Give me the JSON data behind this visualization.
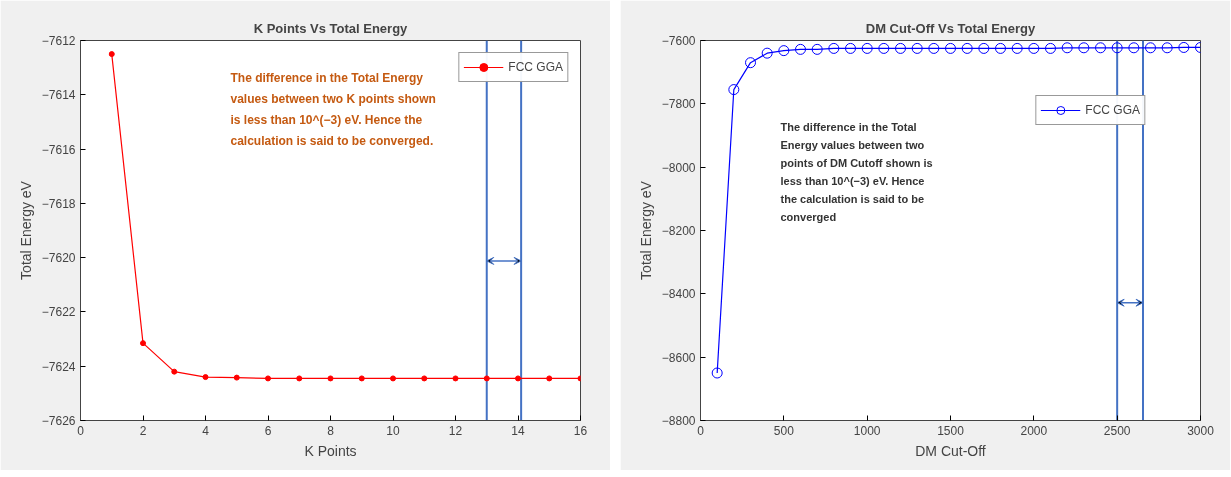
{
  "chart_data": [
    {
      "type": "line",
      "title": "K Points Vs Total Energy",
      "xlabel": "K Points",
      "ylabel": "Total Energy eV",
      "x": [
        1,
        2,
        3,
        4,
        5,
        6,
        7,
        8,
        9,
        10,
        11,
        12,
        13,
        14,
        15,
        16
      ],
      "series": [
        {
          "name": "FCC GGA",
          "color": "#ff0000",
          "values": [
            -7612.5,
            -7623.15,
            -7624.2,
            -7624.4,
            -7624.42,
            -7624.45,
            -7624.45,
            -7624.45,
            -7624.45,
            -7624.45,
            -7624.45,
            -7624.45,
            -7624.45,
            -7624.45,
            -7624.45,
            -7624.45
          ]
        }
      ],
      "xlim": [
        0,
        16
      ],
      "xticks": [
        0,
        2,
        4,
        6,
        8,
        10,
        12,
        14,
        16
      ],
      "ylim": [
        -7626,
        -7612
      ],
      "yticks": [
        -7626,
        -7624,
        -7622,
        -7620,
        -7618,
        -7616,
        -7614,
        -7612
      ],
      "ref_lines": [
        {
          "axis": "x",
          "value": 13,
          "label": null,
          "color": "#4472c4"
        },
        {
          "axis": "x",
          "value": 14.1,
          "label": null,
          "color": "#4472c4"
        }
      ],
      "annotations": [
        "The difference in the Total Energy\nvalues between two K points shown\nis less than 10^(−3) eV. Hence the\ncalculation is said to be converged."
      ],
      "legend": "top right",
      "grid": false,
      "marker": "circle",
      "line_style": "solid"
    },
    {
      "type": "line",
      "title": "DM Cut-Off Vs Total Energy",
      "xlabel": "DM Cut-Off",
      "ylabel": "Total Energy eV",
      "x": [
        100,
        200,
        300,
        400,
        500,
        600,
        700,
        800,
        900,
        1000,
        1100,
        1200,
        1300,
        1400,
        1500,
        1600,
        1700,
        1800,
        1900,
        2000,
        2100,
        2200,
        2300,
        2400,
        2500,
        2600,
        2700,
        2800,
        2900,
        3000
      ],
      "series": [
        {
          "name": "FCC GGA",
          "color": "#0000ff",
          "values": [
            -8650,
            -7755,
            -7670,
            -7640,
            -7632,
            -7628,
            -7628,
            -7625,
            -7625,
            -7625,
            -7625,
            -7625,
            -7625,
            -7625,
            -7625,
            -7625,
            -7625,
            -7625,
            -7625,
            -7625,
            -7625,
            -7623,
            -7623,
            -7623,
            -7623,
            -7623,
            -7623,
            -7623,
            -7622,
            -7622
          ]
        }
      ],
      "xlim": [
        0,
        3000
      ],
      "xticks": [
        0,
        500,
        1000,
        1500,
        2000,
        2500,
        3000
      ],
      "ylim": [
        -8800,
        -7600
      ],
      "yticks": [
        -8800,
        -8600,
        -8400,
        -8200,
        -8000,
        -7800,
        -7600
      ],
      "ref_lines": [
        {
          "axis": "x",
          "value": 2500,
          "label": null,
          "color": "#4472c4"
        },
        {
          "axis": "x",
          "value": 2655,
          "label": null,
          "color": "#4472c4"
        }
      ],
      "annotations": [
        "The difference in the Total\nEnergy values between two\npoints of DM Cutoff shown is\nless than 10^(−3) eV. Hence\nthe calculation is said to be\nconverged"
      ],
      "legend": "top right",
      "grid": false,
      "marker": "circle",
      "line_style": "solid"
    }
  ]
}
